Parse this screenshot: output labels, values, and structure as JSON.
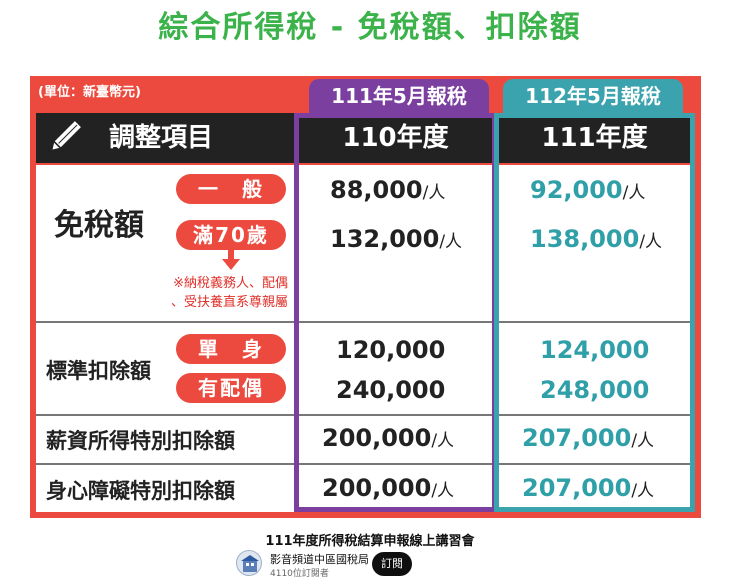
{
  "slide": {
    "title": "綜合所得稅 - 免稅額、扣除額",
    "unit_note": "(單位：新臺幣元)",
    "tabs": {
      "left": "111年5月報稅",
      "right": "112年5月報稅"
    },
    "header": {
      "item": "調整項目",
      "col1": "110年度",
      "col2": "111年度"
    },
    "exemption": {
      "label": "免稅額",
      "general_label": "一　般",
      "over70_label": "滿70歲",
      "note_line1": "※納稅義務人、配偶",
      "note_line2": "、受扶養直系尊親屬",
      "general_110": "88,000",
      "general_111": "92,000",
      "over70_110": "132,000",
      "over70_111": "138,000",
      "per_person": "/人"
    },
    "standard": {
      "label": "標準扣除額",
      "single_label": "單　身",
      "married_label": "有配偶",
      "single_110": "120,000",
      "single_111": "124,000",
      "married_110": "240,000",
      "married_111": "248,000"
    },
    "salary": {
      "label": "薪資所得特別扣除額",
      "v110": "200,000",
      "v111": "207,000"
    },
    "disability": {
      "label": "身心障礙特別扣除額",
      "v110": "200,000",
      "v111": "207,000"
    }
  },
  "video": {
    "caption": "111年度所得稅結算申報線上講習會",
    "channel_name": "影音頻道中區國稅局",
    "subscribers": "4110位訂閱者",
    "subscribe_label": "訂閱"
  },
  "colors": {
    "green": "#3bb24a",
    "red": "#ed4a3f",
    "purple": "#7b3fa0",
    "teal": "#3aa3ad",
    "dark": "#222222"
  }
}
